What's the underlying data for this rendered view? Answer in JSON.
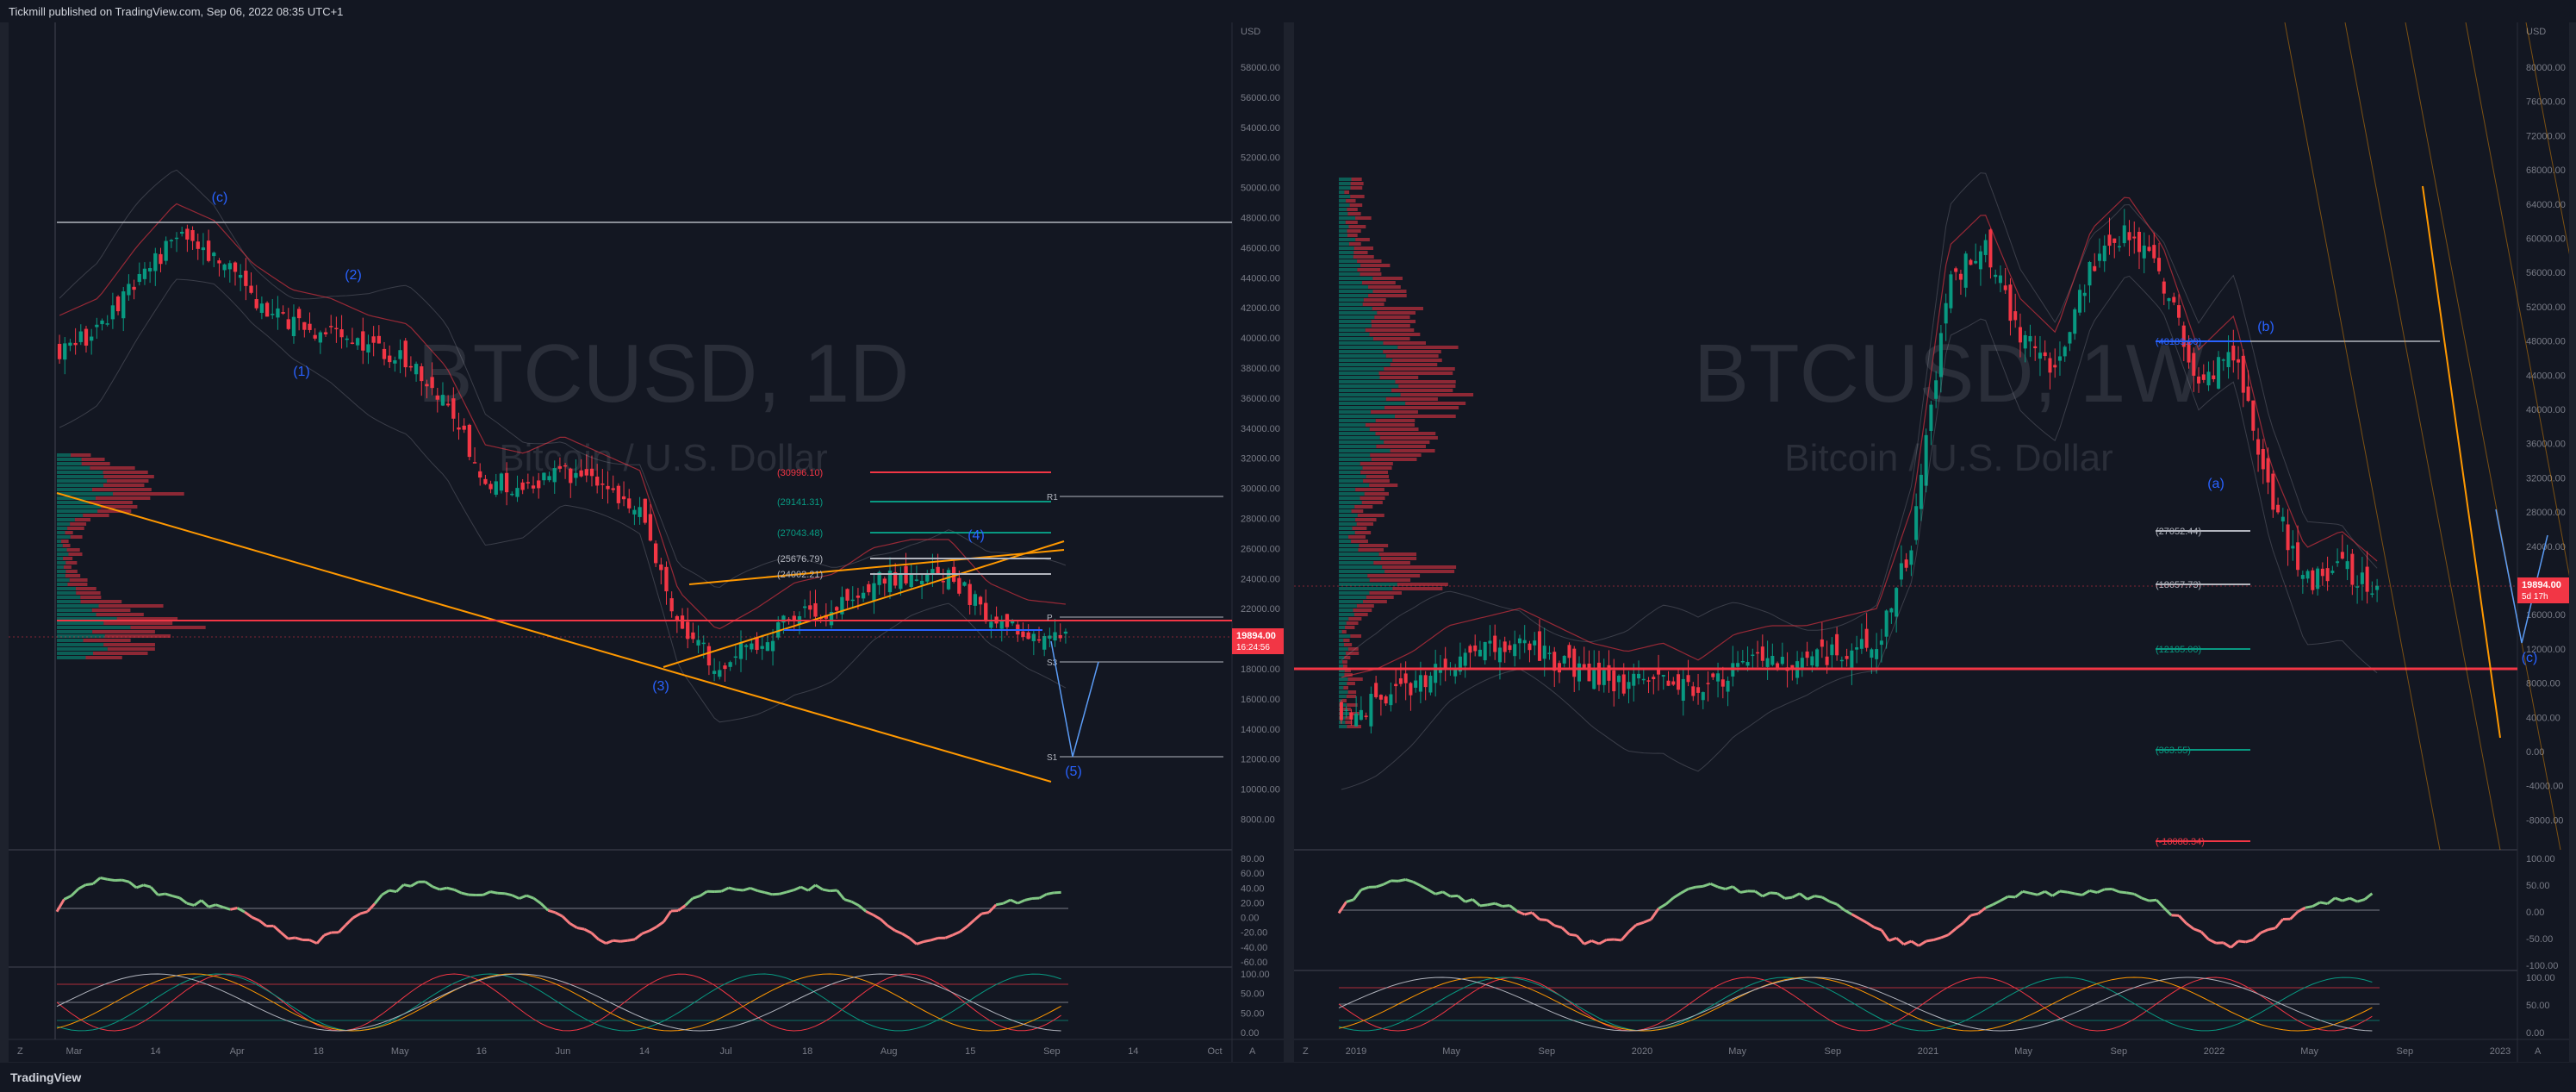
{
  "header": {
    "publisher_text": "Tickmill published on TradingView.com, Sep 06, 2022 08:35 UTC+1"
  },
  "footer": {
    "brand": "TradingView"
  },
  "left_chart": {
    "watermark_symbol": "BTCUSD, 1D",
    "watermark_name": "Bitcoin / U.S. Dollar",
    "currency": "USD",
    "price_ticks": [
      "58000.00",
      "56000.00",
      "54000.00",
      "52000.00",
      "50000.00",
      "48000.00",
      "46000.00",
      "44000.00",
      "42000.00",
      "40000.00",
      "38000.00",
      "36000.00",
      "34000.00",
      "32000.00",
      "30000.00",
      "28000.00",
      "26000.00",
      "24000.00",
      "22000.00",
      "20000.00",
      "18000.00",
      "16000.00",
      "14000.00",
      "12000.00",
      "10000.00",
      "8000.00"
    ],
    "last_price": "19894.00",
    "countdown": "16:24:56",
    "time_ticks": [
      "Mar",
      "14",
      "Apr",
      "18",
      "May",
      "16",
      "Jun",
      "14",
      "Jul",
      "18",
      "Aug",
      "15",
      "Sep",
      "14",
      "Oct"
    ],
    "wave_labels": [
      "(c)",
      "(2)",
      "(1)",
      "(3)",
      "(4)",
      "(5)"
    ],
    "fib_levels": [
      {
        "label": "(30996.10)",
        "color": "#f23645"
      },
      {
        "label": "(29141.31)",
        "color": "#089981"
      },
      {
        "label": "(27043.48)",
        "color": "#089981"
      },
      {
        "label": "(25676.79)",
        "color": "#b2b5be"
      },
      {
        "label": "(24002.21)",
        "color": "#b2b5be"
      }
    ],
    "pivot_labels": [
      "R1",
      "P",
      "S3",
      "S1"
    ],
    "osc1_ticks": [
      "80.00",
      "60.00",
      "40.00",
      "20.00",
      "0.00",
      "-20.00",
      "-40.00",
      "-60.00"
    ],
    "osc2_ticks": [
      "100.00",
      "50.00",
      "50.00",
      "0.00"
    ],
    "corner_left": "Z",
    "corner_right": "A"
  },
  "right_chart": {
    "watermark_symbol": "BTCUSD, 1W",
    "watermark_name": "Bitcoin / U.S. Dollar",
    "currency": "USD",
    "price_ticks": [
      "80000.00",
      "76000.00",
      "72000.00",
      "68000.00",
      "64000.00",
      "60000.00",
      "56000.00",
      "52000.00",
      "48000.00",
      "44000.00",
      "40000.00",
      "36000.00",
      "32000.00",
      "28000.00",
      "24000.00",
      "20000.00",
      "16000.00",
      "12000.00",
      "8000.00",
      "4000.00",
      "0.00",
      "-4000.00",
      "-8000.00"
    ],
    "last_price": "19894.00",
    "countdown": "5d 17h",
    "time_ticks": [
      "2019",
      "May",
      "Sep",
      "2020",
      "May",
      "Sep",
      "2021",
      "May",
      "Sep",
      "2022",
      "May",
      "Sep",
      "2023"
    ],
    "wave_labels": [
      "(b)",
      "(a)",
      "(c)"
    ],
    "fib_levels": [
      {
        "label": "(48189.00)",
        "color": "#2962ff"
      },
      {
        "label": "(27052.44)",
        "color": "#b2b5be"
      },
      {
        "label": "(18657.73)",
        "color": "#b2b5be"
      },
      {
        "label": "(12185.00)",
        "color": "#089981"
      },
      {
        "label": "(363.55)",
        "color": "#089981"
      },
      {
        "label": "(-10088.34)",
        "color": "#f23645"
      }
    ],
    "osc1_ticks": [
      "100.00",
      "50.00",
      "0.00",
      "-50.00",
      "-100.00"
    ],
    "osc2_ticks": [
      "100.00",
      "50.00",
      "0.00"
    ],
    "corner_left": "Z",
    "corner_right": "A"
  },
  "colors": {
    "bg": "#131722",
    "up": "#089981",
    "down": "#f23645",
    "ray": "#ff9800",
    "wave": "#2962ff"
  }
}
